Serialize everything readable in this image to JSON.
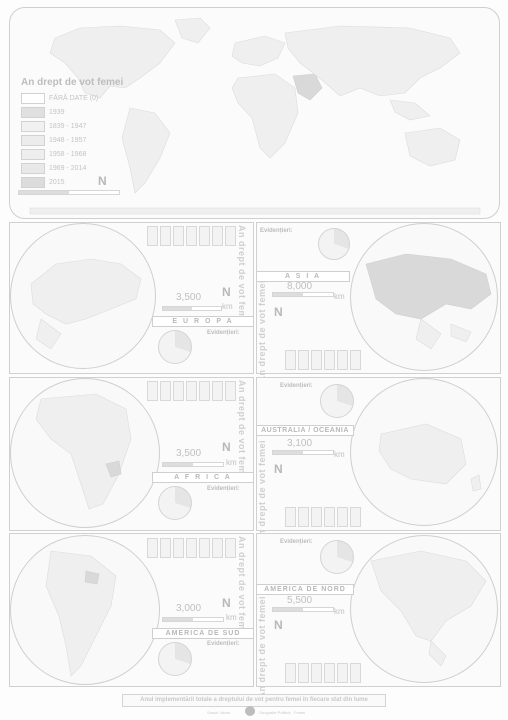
{
  "world": {
    "legend_title": "An drept de vot femei",
    "legend": [
      {
        "label": "FĂRĂ DATE   (0)",
        "color": "#ffffff"
      },
      {
        "label": "1939",
        "color": "#e0e0e0"
      },
      {
        "label": "1839 - 1947",
        "color": "#f1f1f1"
      },
      {
        "label": "1948 - 1957",
        "color": "#ececec"
      },
      {
        "label": "1958 - 1968",
        "color": "#eeeeee"
      },
      {
        "label": "1969 - 2014",
        "color": "#e8e8e8"
      },
      {
        "label": "2015",
        "color": "#dcdcdc"
      }
    ],
    "north": "N"
  },
  "common": {
    "vertical_title": "An drept de vot femei",
    "legend_box_title": "Evidențieri:",
    "north": "N",
    "km": "km"
  },
  "regions": {
    "europa": {
      "label": "E U R O P A",
      "scale": "3,500"
    },
    "asia": {
      "label": "A S I A",
      "scale": "8,000"
    },
    "africa": {
      "label": "A F R I C A",
      "scale": "3,500"
    },
    "oceania": {
      "label": "AUSTRALIA / OCEANIA",
      "scale": "3,100"
    },
    "america_sud": {
      "label": "AMERICA DE SUD",
      "scale": "3,000"
    },
    "america_nord": {
      "label": "AMERICA DE NORD",
      "scale": "5,500"
    }
  },
  "footer": {
    "title": "Anul implementării totale a dreptului de vot pentru femei în fiecare stat din lume",
    "credit_left": "Sursa / Autor",
    "credit_right": "Geografie Politică · Femei"
  }
}
